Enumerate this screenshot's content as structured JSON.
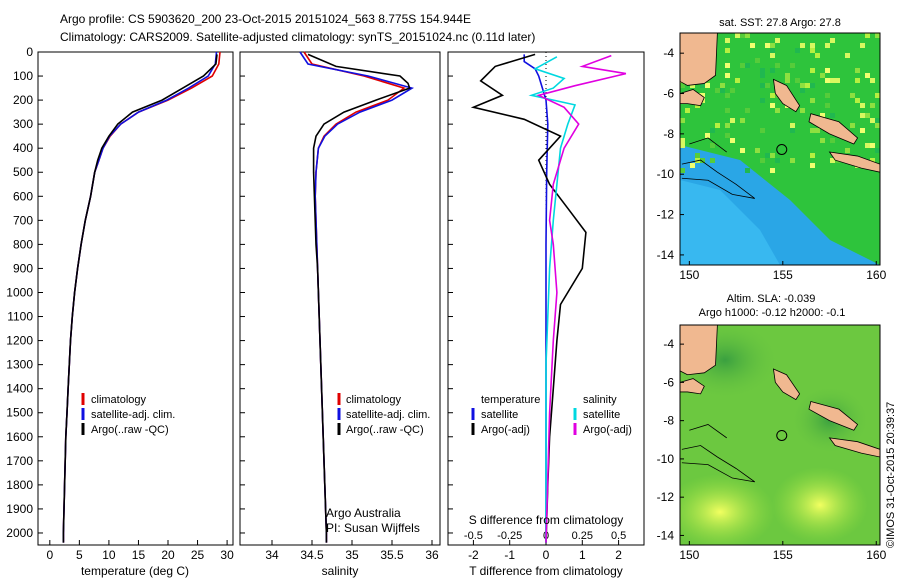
{
  "header": {
    "line1": "Argo profile: CS 5903620_200 23-Oct-2015 20151024_563 8.775S 154.944E",
    "line2": "Climatology: CARS2009. Satellite-adjusted climatology: synTS_20151024.nc (0.11d later)"
  },
  "credit": {
    "org": "Argo Australia",
    "pi": "PI: Susan Wijffels",
    "stamp": "©IMOS 31-Oct-2015 20:39:37"
  },
  "colors": {
    "climatology": "#e00000",
    "satellite": "#1010e0",
    "argo": "#000000",
    "sal_satellite": "#00d8e0",
    "sal_argo": "#e000e0",
    "land": "#f0b890"
  },
  "chart_data": [
    {
      "type": "line",
      "id": "temperature",
      "xlabel": "temperature (deg C)",
      "xlim": [
        -2,
        31
      ],
      "xticks": [
        0,
        5,
        10,
        15,
        20,
        25,
        30
      ],
      "ylim": [
        0,
        2050
      ],
      "yticks": [
        0,
        100,
        200,
        300,
        400,
        500,
        600,
        700,
        800,
        900,
        1000,
        1100,
        1200,
        1300,
        1400,
        1500,
        1600,
        1700,
        1800,
        1900,
        2000
      ],
      "legend": [
        "climatology",
        "satellite-adj. clim.",
        "Argo(..raw -QC)"
      ],
      "series": [
        {
          "name": "climatology",
          "color_key": "climatology",
          "points": [
            [
              28.8,
              0
            ],
            [
              28.6,
              50
            ],
            [
              27.5,
              100
            ],
            [
              24,
              150
            ],
            [
              20,
              200
            ],
            [
              15,
              250
            ],
            [
              12,
              300
            ],
            [
              10.2,
              350
            ],
            [
              9,
              400
            ],
            [
              8.3,
              450
            ],
            [
              7.6,
              500
            ],
            [
              6.9,
              600
            ],
            [
              6,
              700
            ],
            [
              5.3,
              800
            ],
            [
              4.7,
              900
            ],
            [
              4.2,
              1000
            ],
            [
              3.8,
              1100
            ],
            [
              3.5,
              1200
            ],
            [
              3.3,
              1300
            ],
            [
              3.1,
              1400
            ],
            [
              2.9,
              1500
            ],
            [
              2.7,
              1600
            ],
            [
              2.6,
              1700
            ],
            [
              2.5,
              1800
            ],
            [
              2.4,
              1900
            ],
            [
              2.3,
              2000
            ],
            [
              2.3,
              2040
            ]
          ]
        },
        {
          "name": "satellite-adj. clim.",
          "color_key": "satellite",
          "points": [
            [
              28.2,
              0
            ],
            [
              28,
              50
            ],
            [
              26.8,
              100
            ],
            [
              23.5,
              150
            ],
            [
              19.8,
              200
            ],
            [
              15,
              250
            ],
            [
              12,
              300
            ],
            [
              10.1,
              350
            ],
            [
              9,
              400
            ],
            [
              8.3,
              450
            ],
            [
              7.6,
              500
            ],
            [
              6.9,
              600
            ],
            [
              6,
              700
            ],
            [
              5.3,
              800
            ],
            [
              4.7,
              900
            ],
            [
              4.2,
              1000
            ],
            [
              3.8,
              1100
            ],
            [
              3.5,
              1200
            ],
            [
              3.3,
              1300
            ],
            [
              3.1,
              1400
            ],
            [
              2.9,
              1500
            ],
            [
              2.7,
              1600
            ],
            [
              2.6,
              1700
            ],
            [
              2.5,
              1800
            ],
            [
              2.4,
              1900
            ],
            [
              2.3,
              2000
            ],
            [
              2.3,
              2040
            ]
          ]
        },
        {
          "name": "Argo(..raw -QC)",
          "color_key": "argo",
          "points": [
            [
              28.3,
              10
            ],
            [
              28.1,
              50
            ],
            [
              26,
              100
            ],
            [
              22.5,
              150
            ],
            [
              19,
              200
            ],
            [
              14,
              250
            ],
            [
              11.5,
              300
            ],
            [
              10,
              350
            ],
            [
              8.8,
              400
            ],
            [
              8.1,
              450
            ],
            [
              7.6,
              500
            ],
            [
              6.9,
              600
            ],
            [
              6,
              700
            ],
            [
              5.3,
              800
            ],
            [
              4.7,
              900
            ],
            [
              4.2,
              1000
            ],
            [
              3.8,
              1100
            ],
            [
              3.5,
              1200
            ],
            [
              3.3,
              1300
            ],
            [
              3.1,
              1400
            ],
            [
              2.9,
              1500
            ],
            [
              2.7,
              1600
            ],
            [
              2.6,
              1700
            ],
            [
              2.5,
              1800
            ],
            [
              2.4,
              1900
            ],
            [
              2.3,
              2000
            ],
            [
              2.3,
              2040
            ]
          ]
        }
      ]
    },
    {
      "type": "line",
      "id": "salinity",
      "xlabel": "salinity",
      "xlim": [
        33.6,
        36.1
      ],
      "xticks": [
        34,
        34.5,
        35,
        35.5,
        36
      ],
      "ylim": [
        0,
        2050
      ],
      "legend": [
        "climatology",
        "satellite-adj. clim.",
        "Argo(..raw -QC)"
      ],
      "series": [
        {
          "name": "climatology",
          "color_key": "climatology",
          "points": [
            [
              34.4,
              0
            ],
            [
              34.5,
              50
            ],
            [
              35.15,
              100
            ],
            [
              35.65,
              150
            ],
            [
              35.45,
              200
            ],
            [
              35.05,
              250
            ],
            [
              34.8,
              300
            ],
            [
              34.65,
              350
            ],
            [
              34.58,
              400
            ],
            [
              34.55,
              500
            ],
            [
              34.54,
              600
            ],
            [
              34.55,
              700
            ],
            [
              34.56,
              800
            ],
            [
              34.57,
              900
            ],
            [
              34.58,
              1000
            ],
            [
              34.6,
              1200
            ],
            [
              34.62,
              1400
            ],
            [
              34.64,
              1600
            ],
            [
              34.66,
              1800
            ],
            [
              34.68,
              2000
            ],
            [
              34.68,
              2040
            ]
          ]
        },
        {
          "name": "satellite-adj. clim.",
          "color_key": "satellite",
          "points": [
            [
              34.35,
              0
            ],
            [
              34.45,
              50
            ],
            [
              35.2,
              100
            ],
            [
              35.75,
              150
            ],
            [
              35.5,
              200
            ],
            [
              35.1,
              250
            ],
            [
              34.82,
              300
            ],
            [
              34.66,
              350
            ],
            [
              34.58,
              400
            ],
            [
              34.55,
              500
            ],
            [
              34.54,
              600
            ],
            [
              34.55,
              700
            ],
            [
              34.56,
              800
            ],
            [
              34.57,
              900
            ],
            [
              34.58,
              1000
            ],
            [
              34.6,
              1200
            ],
            [
              34.62,
              1400
            ],
            [
              34.64,
              1600
            ],
            [
              34.66,
              1800
            ],
            [
              34.68,
              2000
            ],
            [
              34.68,
              2040
            ]
          ]
        },
        {
          "name": "Argo(..raw -QC)",
          "color_key": "argo",
          "points": [
            [
              34.45,
              10
            ],
            [
              34.8,
              60
            ],
            [
              35.6,
              100
            ],
            [
              35.7,
              130
            ],
            [
              35.72,
              150
            ],
            [
              35.3,
              200
            ],
            [
              34.9,
              250
            ],
            [
              34.65,
              300
            ],
            [
              34.55,
              350
            ],
            [
              34.52,
              400
            ],
            [
              34.52,
              450
            ],
            [
              34.52,
              500
            ],
            [
              34.53,
              600
            ],
            [
              34.54,
              700
            ],
            [
              34.55,
              800
            ],
            [
              34.57,
              900
            ],
            [
              34.58,
              1000
            ],
            [
              34.6,
              1200
            ],
            [
              34.62,
              1400
            ],
            [
              34.64,
              1600
            ],
            [
              34.66,
              1800
            ],
            [
              34.68,
              2000
            ],
            [
              34.68,
              2040
            ]
          ]
        }
      ]
    },
    {
      "type": "line",
      "id": "difference",
      "xlabel_bottom": "T difference from climatology",
      "xlabel_top": "S difference from climatology",
      "xlim": [
        -2.7,
        2.7
      ],
      "xticks": [
        -2,
        -1,
        0,
        1,
        2
      ],
      "xticks_s_labels": [
        "-0.5",
        "-0.25",
        "0",
        "0.25",
        "0.5"
      ],
      "ylim": [
        0,
        2050
      ],
      "legend_temperature": [
        "temperature",
        "satellite",
        "Argo(-adj)"
      ],
      "legend_salinity": [
        "salinity",
        "satellite",
        "Argo(-adj)"
      ],
      "series": [
        {
          "name": "T satellite",
          "color_key": "satellite",
          "points": [
            [
              -0.6,
              10
            ],
            [
              -0.6,
              40
            ],
            [
              -0.3,
              70
            ],
            [
              -0.2,
              100
            ],
            [
              -0.1,
              150
            ],
            [
              0,
              200
            ],
            [
              0.05,
              300
            ],
            [
              0.02,
              500
            ],
            [
              0,
              800
            ],
            [
              0,
              1200
            ],
            [
              0,
              1600
            ],
            [
              0,
              2040
            ]
          ]
        },
        {
          "name": "T Argo(-adj)",
          "color_key": "argo",
          "points": [
            [
              -0.3,
              10
            ],
            [
              -1.4,
              60
            ],
            [
              -1.8,
              120
            ],
            [
              -1.2,
              180
            ],
            [
              -2,
              230
            ],
            [
              -0.6,
              280
            ],
            [
              0.4,
              350
            ],
            [
              -0.2,
              450
            ],
            [
              0.1,
              550
            ],
            [
              0.6,
              650
            ],
            [
              1.1,
              750
            ],
            [
              1.0,
              900
            ],
            [
              0.4,
              1050
            ],
            [
              0.3,
              1200
            ],
            [
              0.2,
              1400
            ],
            [
              0.1,
              1600
            ],
            [
              0.05,
              1800
            ],
            [
              0,
              2040
            ]
          ]
        },
        {
          "name": "S satellite",
          "color_key": "sal_satellite",
          "points": [
            [
              0.3,
              20
            ],
            [
              -0.3,
              70
            ],
            [
              0.5,
              110
            ],
            [
              0.2,
              150
            ],
            [
              -0.4,
              180
            ],
            [
              0.8,
              220
            ],
            [
              0.6,
              300
            ],
            [
              0.4,
              400
            ],
            [
              0.3,
              550
            ],
            [
              0.2,
              700
            ],
            [
              0.1,
              900
            ],
            [
              0.05,
              1100
            ],
            [
              0,
              1300
            ],
            [
              0,
              1600
            ],
            [
              0,
              2040
            ]
          ]
        },
        {
          "name": "S Argo(-adj)",
          "color_key": "sal_argo",
          "points": [
            [
              1.8,
              15
            ],
            [
              1.0,
              60
            ],
            [
              2.2,
              90
            ],
            [
              0.8,
              140
            ],
            [
              -0.2,
              180
            ],
            [
              0.5,
              230
            ],
            [
              0.9,
              300
            ],
            [
              0.5,
              400
            ],
            [
              0.2,
              550
            ],
            [
              0.1,
              700
            ],
            [
              0.2,
              800
            ],
            [
              0.3,
              1000
            ],
            [
              0.2,
              1200
            ],
            [
              0.1,
              1500
            ],
            [
              0,
              2040
            ]
          ]
        }
      ]
    },
    {
      "type": "heatmap",
      "id": "sst_map",
      "title": "sat. SST: 27.8 Argo: 27.8",
      "xlim": [
        149.5,
        160.2
      ],
      "ylim": [
        -14.5,
        -3.0
      ],
      "xticks": [
        150,
        155,
        160
      ],
      "yticks": [
        -4,
        -6,
        -8,
        -10,
        -12,
        -14
      ],
      "argo_position": [
        154.944,
        -8.775
      ]
    },
    {
      "type": "heatmap",
      "id": "sla_map",
      "title_line1": "Altim. SLA: -0.039",
      "title_line2": "Argo h1000: -0.12 h2000: -0.1",
      "xlim": [
        149.5,
        160.2
      ],
      "ylim": [
        -14.5,
        -3.0
      ],
      "xticks": [
        150,
        155,
        160
      ],
      "yticks": [
        -4,
        -6,
        -8,
        -10,
        -12,
        -14
      ],
      "argo_position": [
        154.944,
        -8.775
      ]
    }
  ]
}
